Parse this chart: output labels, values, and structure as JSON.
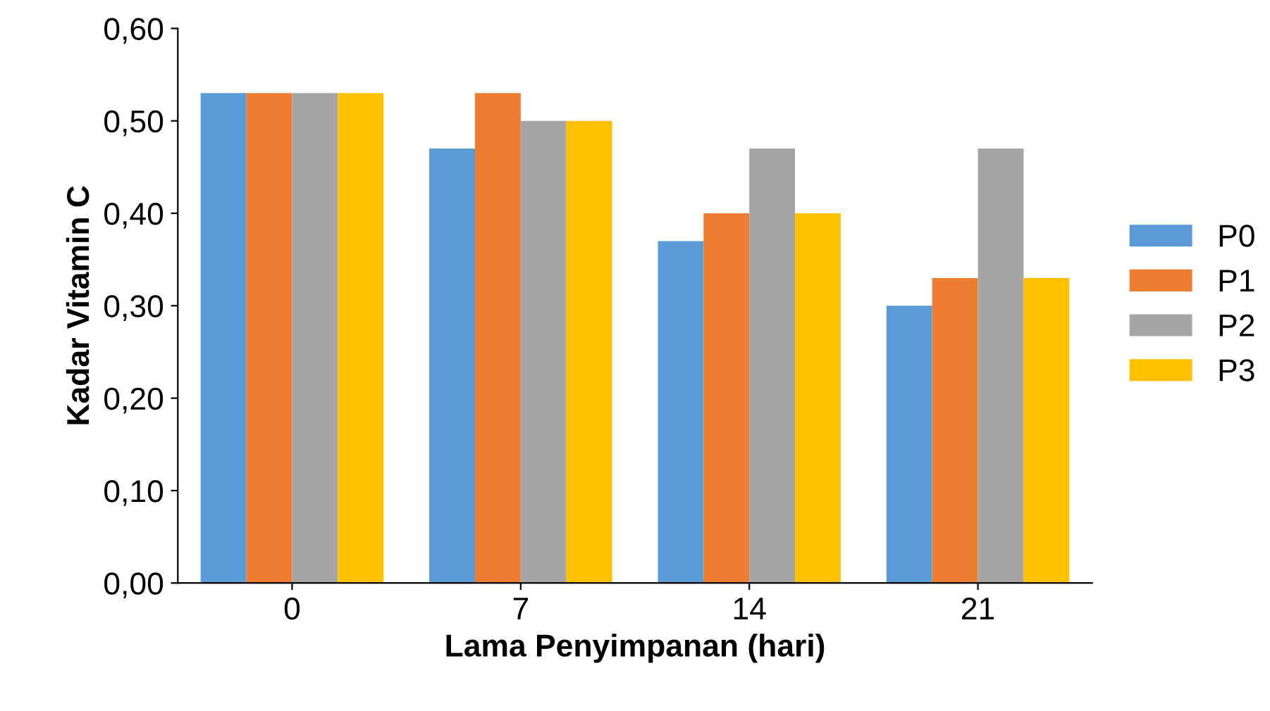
{
  "chart_data": {
    "type": "bar",
    "xlabel": "Lama Penyimpanan (hari)",
    "ylabel": "Kadar Vitamin C",
    "categories": [
      "0",
      "7",
      "14",
      "21"
    ],
    "series": [
      {
        "name": "P0",
        "color": "#5b9bd5",
        "values": [
          0.53,
          0.47,
          0.37,
          0.3
        ]
      },
      {
        "name": "P1",
        "color": "#ed7d31",
        "values": [
          0.53,
          0.53,
          0.4,
          0.33
        ]
      },
      {
        "name": "P2",
        "color": "#a5a5a5",
        "values": [
          0.53,
          0.5,
          0.47,
          0.47
        ]
      },
      {
        "name": "P3",
        "color": "#ffc000",
        "values": [
          0.53,
          0.5,
          0.4,
          0.33
        ]
      }
    ],
    "ylim": [
      0,
      0.6
    ],
    "yticks": [
      {
        "value": 0,
        "label": "0,00"
      },
      {
        "value": 0.1,
        "label": "0,10"
      },
      {
        "value": 0.2,
        "label": "0,20"
      },
      {
        "value": 0.3,
        "label": "0,30"
      },
      {
        "value": 0.4,
        "label": "0,40"
      },
      {
        "value": 0.5,
        "label": "0,50"
      },
      {
        "value": 0.6,
        "label": "0,60"
      }
    ],
    "legend": "right",
    "grid": false
  }
}
